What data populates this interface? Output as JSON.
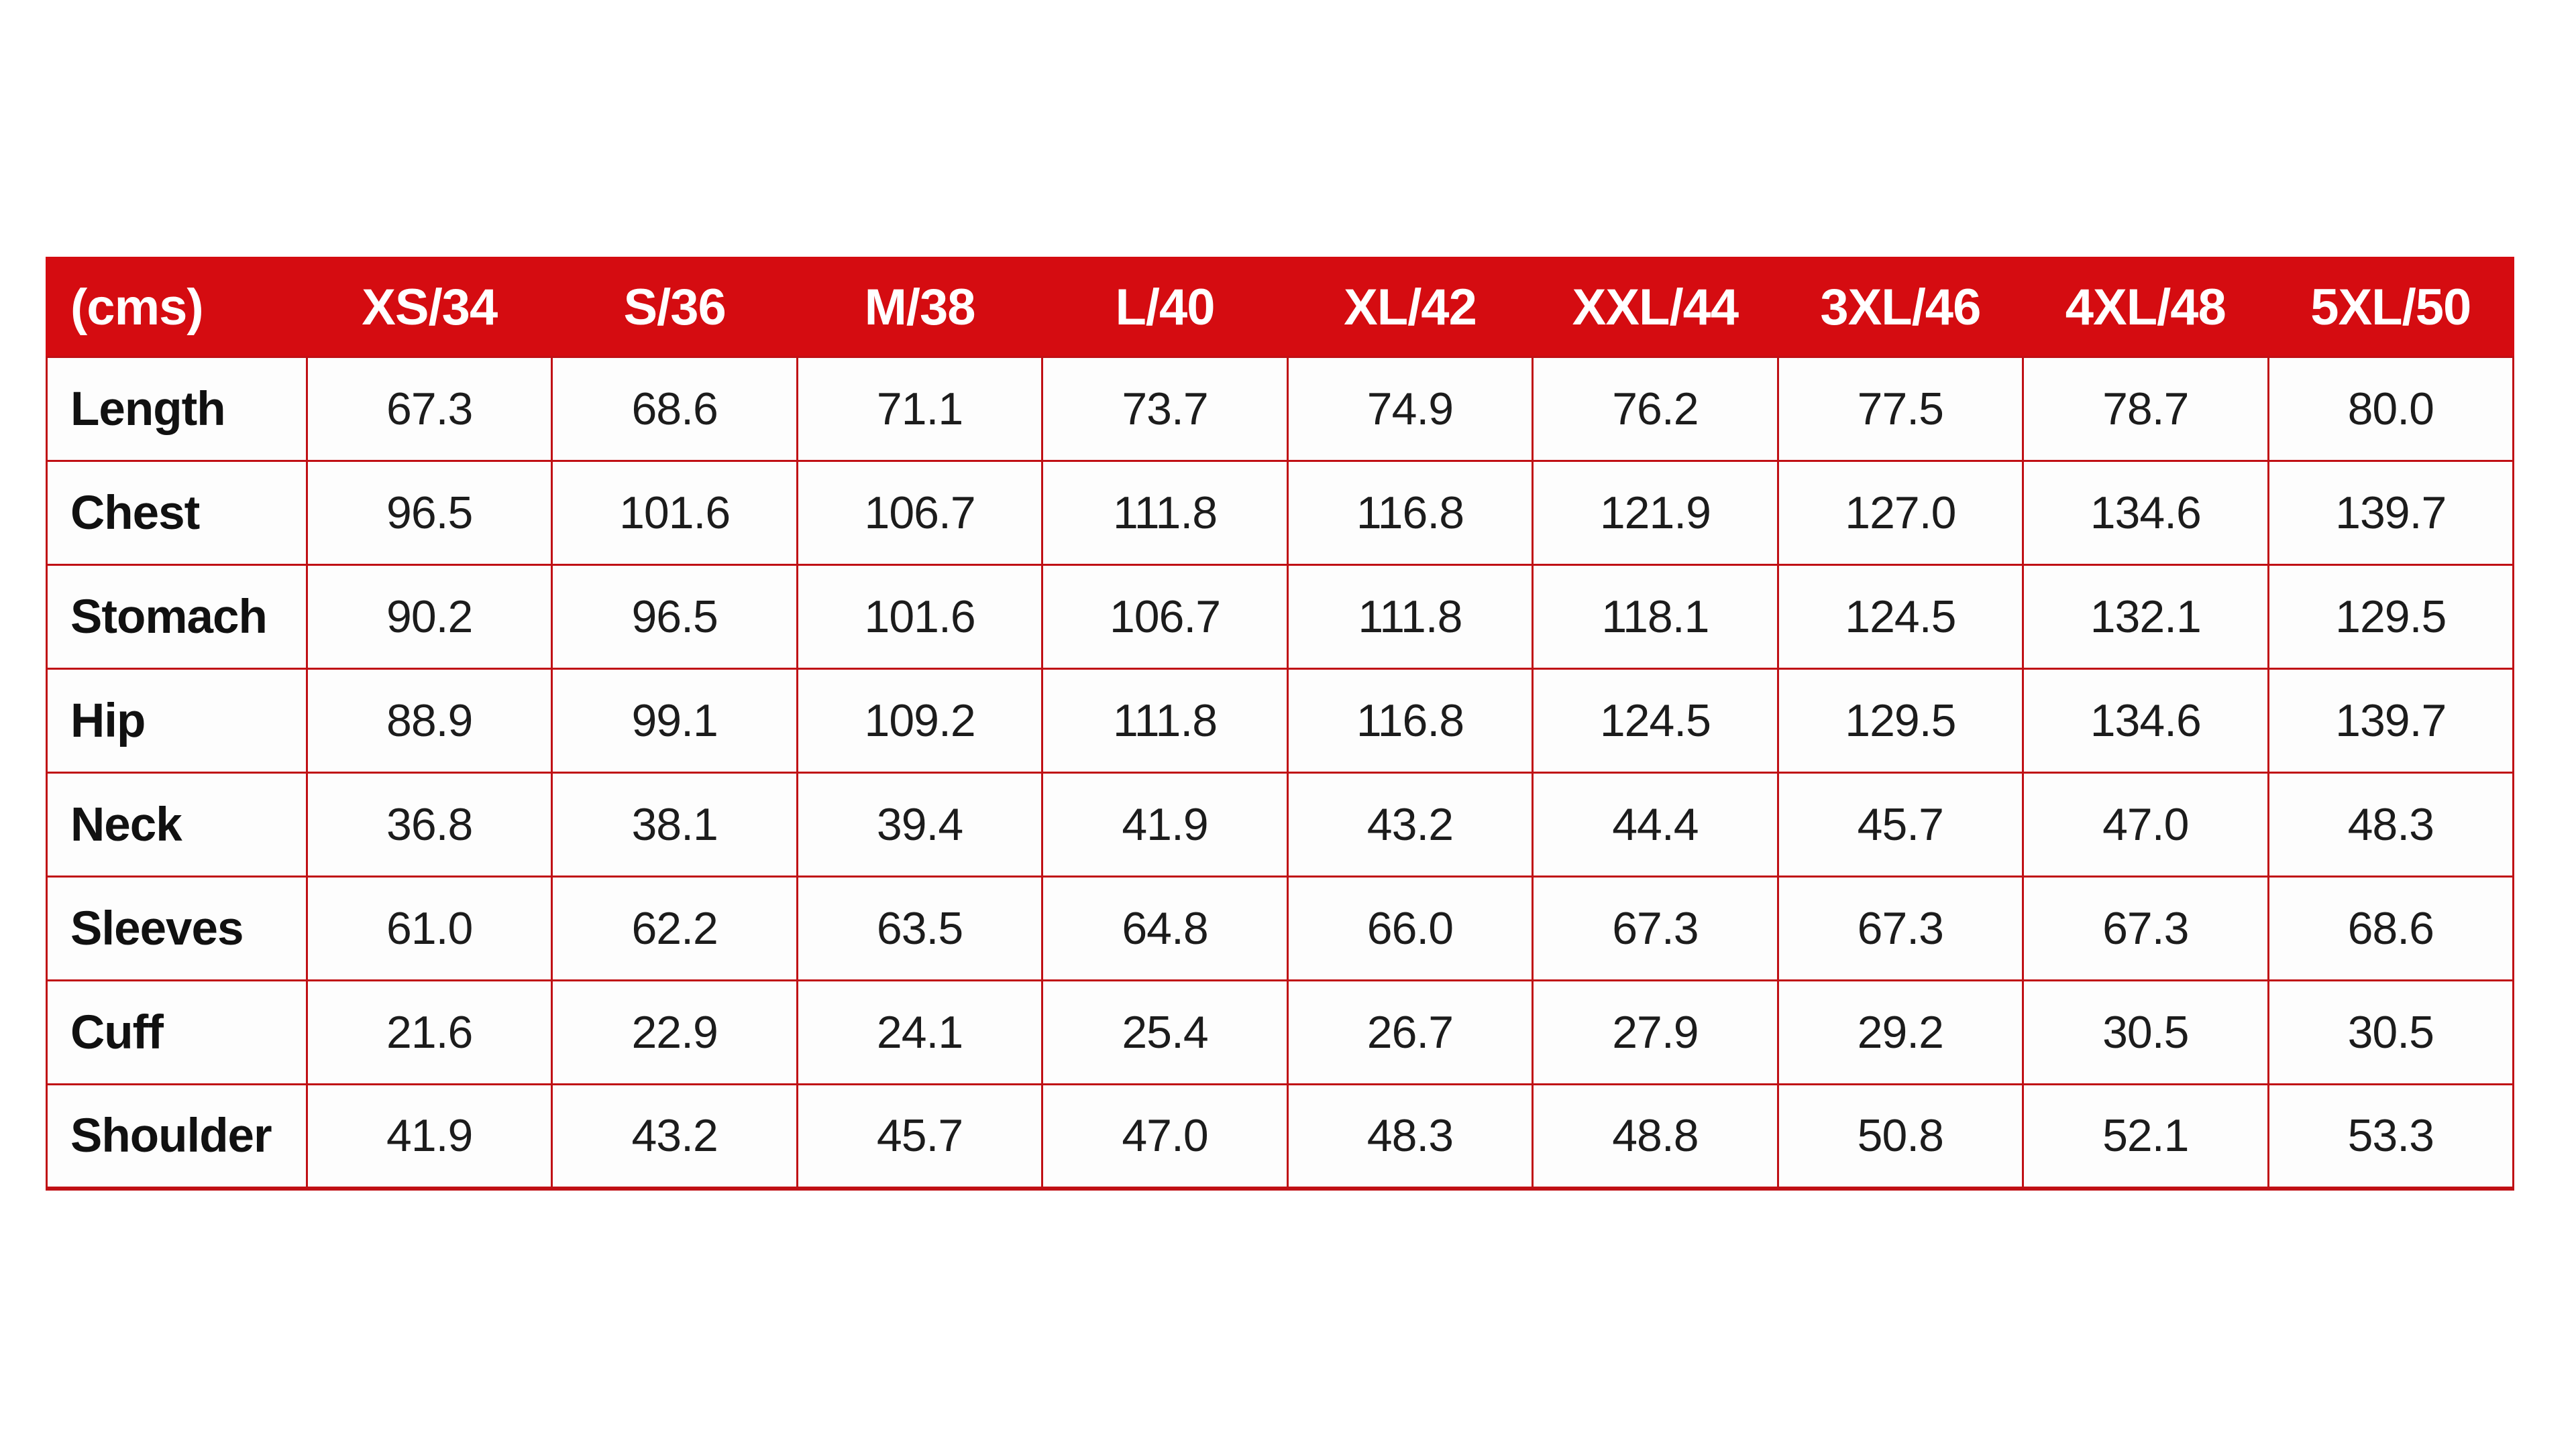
{
  "page": {
    "background_color": "#ffffff"
  },
  "style": {
    "header_bg_color": "#d50c11",
    "header_text_color": "#ffffff",
    "grid_color": "#c01015",
    "cell_bg_color": "#fdfdfd",
    "value_text_color": "#1c1c1c"
  },
  "chart_data": {
    "type": "table",
    "columns": [
      "(cms)",
      "XS/34",
      "S/36",
      "M/38",
      "L/40",
      "XL/42",
      "XXL/44",
      "3XL/46",
      "4XL/48",
      "5XL/50"
    ],
    "rows": [
      {
        "label": "Length",
        "values": [
          "67.3",
          "68.6",
          "71.1",
          "73.7",
          "74.9",
          "76.2",
          "77.5",
          "78.7",
          "80.0"
        ]
      },
      {
        "label": "Chest",
        "values": [
          "96.5",
          "101.6",
          "106.7",
          "111.8",
          "116.8",
          "121.9",
          "127.0",
          "134.6",
          "139.7"
        ]
      },
      {
        "label": "Stomach",
        "values": [
          "90.2",
          "96.5",
          "101.6",
          "106.7",
          "111.8",
          "118.1",
          "124.5",
          "132.1",
          "129.5"
        ]
      },
      {
        "label": "Hip",
        "values": [
          "88.9",
          "99.1",
          "109.2",
          "111.8",
          "116.8",
          "124.5",
          "129.5",
          "134.6",
          "139.7"
        ]
      },
      {
        "label": "Neck",
        "values": [
          "36.8",
          "38.1",
          "39.4",
          "41.9",
          "43.2",
          "44.4",
          "45.7",
          "47.0",
          "48.3"
        ]
      },
      {
        "label": "Sleeves",
        "values": [
          "61.0",
          "62.2",
          "63.5",
          "64.8",
          "66.0",
          "67.3",
          "67.3",
          "67.3",
          "68.6"
        ]
      },
      {
        "label": "Cuff",
        "values": [
          "21.6",
          "22.9",
          "24.1",
          "25.4",
          "26.7",
          "27.9",
          "29.2",
          "30.5",
          "30.5"
        ]
      },
      {
        "label": "Shoulder",
        "values": [
          "41.9",
          "43.2",
          "45.7",
          "47.0",
          "48.3",
          "48.8",
          "50.8",
          "52.1",
          "53.3"
        ]
      }
    ]
  }
}
